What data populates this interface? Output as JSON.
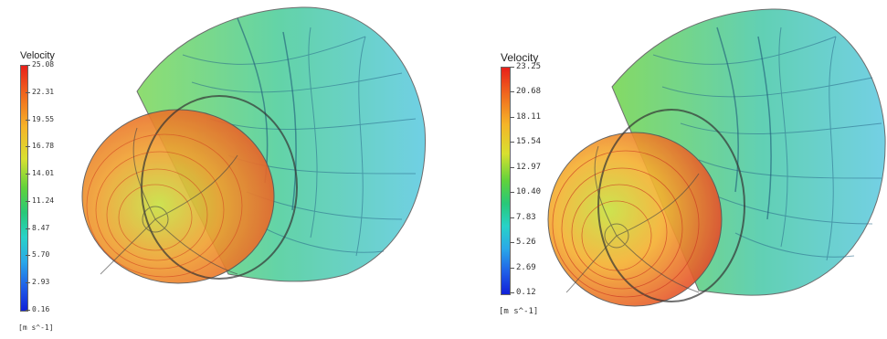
{
  "figure_left": {
    "legend": {
      "title": "Velocity",
      "ticks": [
        "25.08",
        "22.31",
        "19.55",
        "16.78",
        "14.01",
        "11.24",
        "8.47",
        "5.70",
        "2.93",
        "0.16"
      ],
      "unit": "[m s^-1]"
    },
    "colormap": [
      "#e8201a",
      "#f5b428",
      "#5fd23c",
      "#28d2c8",
      "#1020d8"
    ]
  },
  "figure_right": {
    "legend": {
      "title": "Velocity",
      "ticks": [
        "23.25",
        "20.68",
        "18.11",
        "15.54",
        "12.97",
        "10.40",
        "7.83",
        "5.26",
        "2.69",
        "0.12"
      ],
      "unit": "[m s^-1]"
    },
    "colormap": [
      "#e8201a",
      "#f5b428",
      "#5fd23c",
      "#28d2c8",
      "#1020d8"
    ]
  }
}
